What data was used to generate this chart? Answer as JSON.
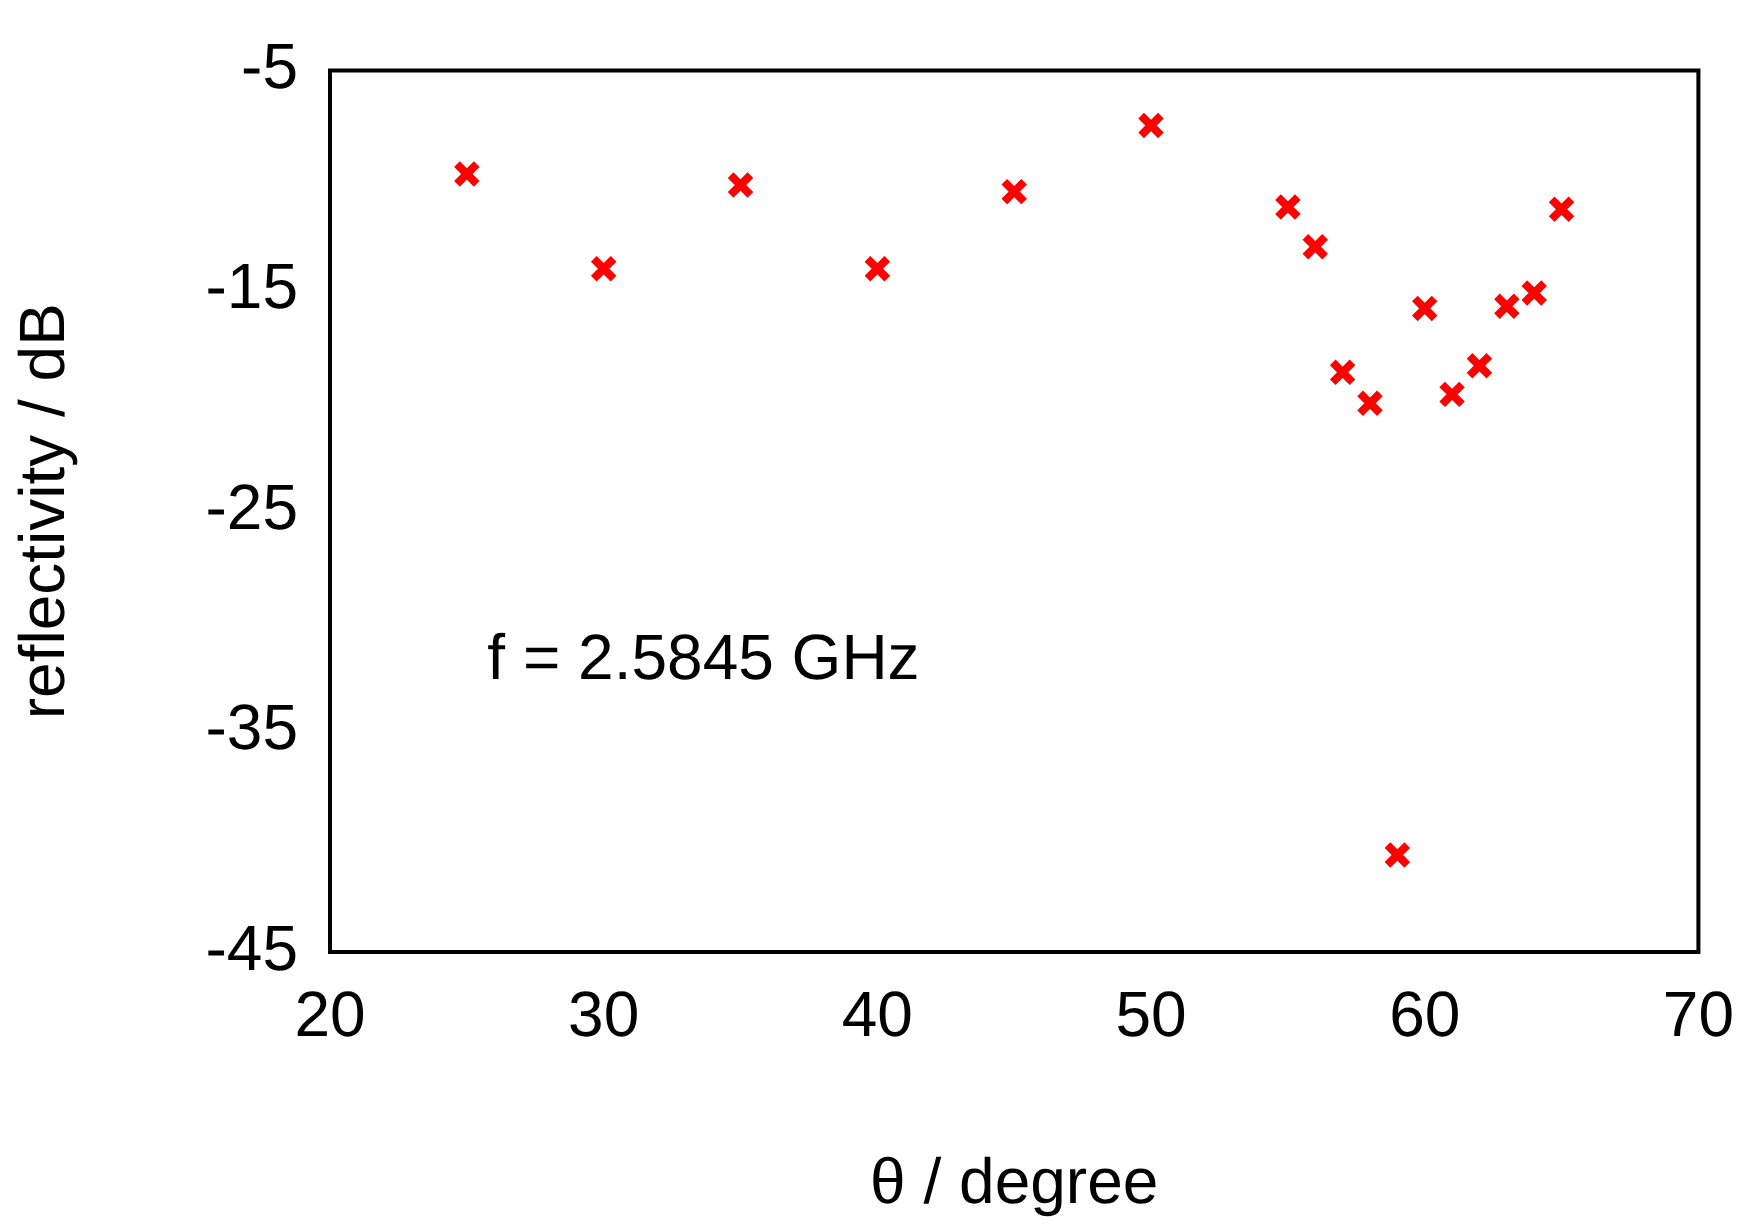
{
  "chart_data": {
    "type": "scatter",
    "xlabel": "θ / degree",
    "ylabel": "reflectivity / dB",
    "x": [
      25,
      30,
      35,
      40,
      45,
      50,
      55,
      56,
      57,
      58,
      59,
      60,
      61,
      62,
      63,
      64,
      65
    ],
    "series": [
      {
        "color": "#ff0000",
        "values": [
          -9.7,
          -14.0,
          -10.2,
          -14.0,
          -10.5,
          -7.5,
          -11.2,
          -13.0,
          -18.7,
          -20.1,
          -40.6,
          -15.8,
          -19.7,
          -18.4,
          -15.7,
          -15.1,
          -11.3
        ]
      }
    ],
    "xlim": [
      20,
      70
    ],
    "xticks": [
      20,
      30,
      40,
      50,
      60,
      70
    ],
    "ylim": [
      -45,
      -5
    ],
    "yticks": [
      -45,
      -35,
      -25,
      -15,
      -5
    ],
    "marker": "cross",
    "grid": false,
    "legend": false,
    "annotations": [
      "f = 2.5845 GHz"
    ]
  }
}
